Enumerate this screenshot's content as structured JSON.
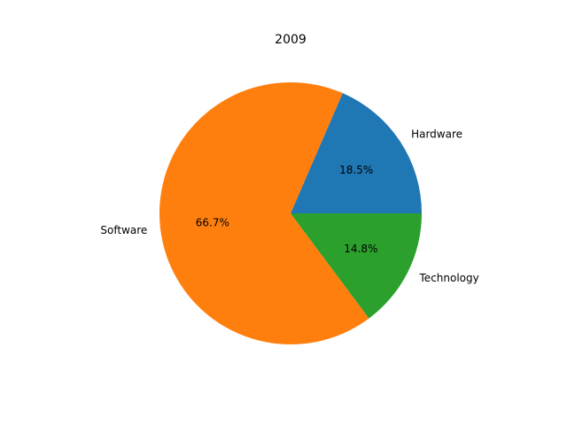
{
  "chart_data": {
    "type": "pie",
    "title": "2009",
    "labels": [
      "Hardware",
      "Software",
      "Technology"
    ],
    "values": [
      18.5,
      66.7,
      14.8
    ],
    "percent_labels": [
      "18.5%",
      "66.7%",
      "14.8%"
    ],
    "colors": [
      "#1f77b4",
      "#ff7f0e",
      "#2ca02c"
    ],
    "start_angle_deg": 0,
    "direction": "counterclockwise",
    "legend": "none"
  }
}
